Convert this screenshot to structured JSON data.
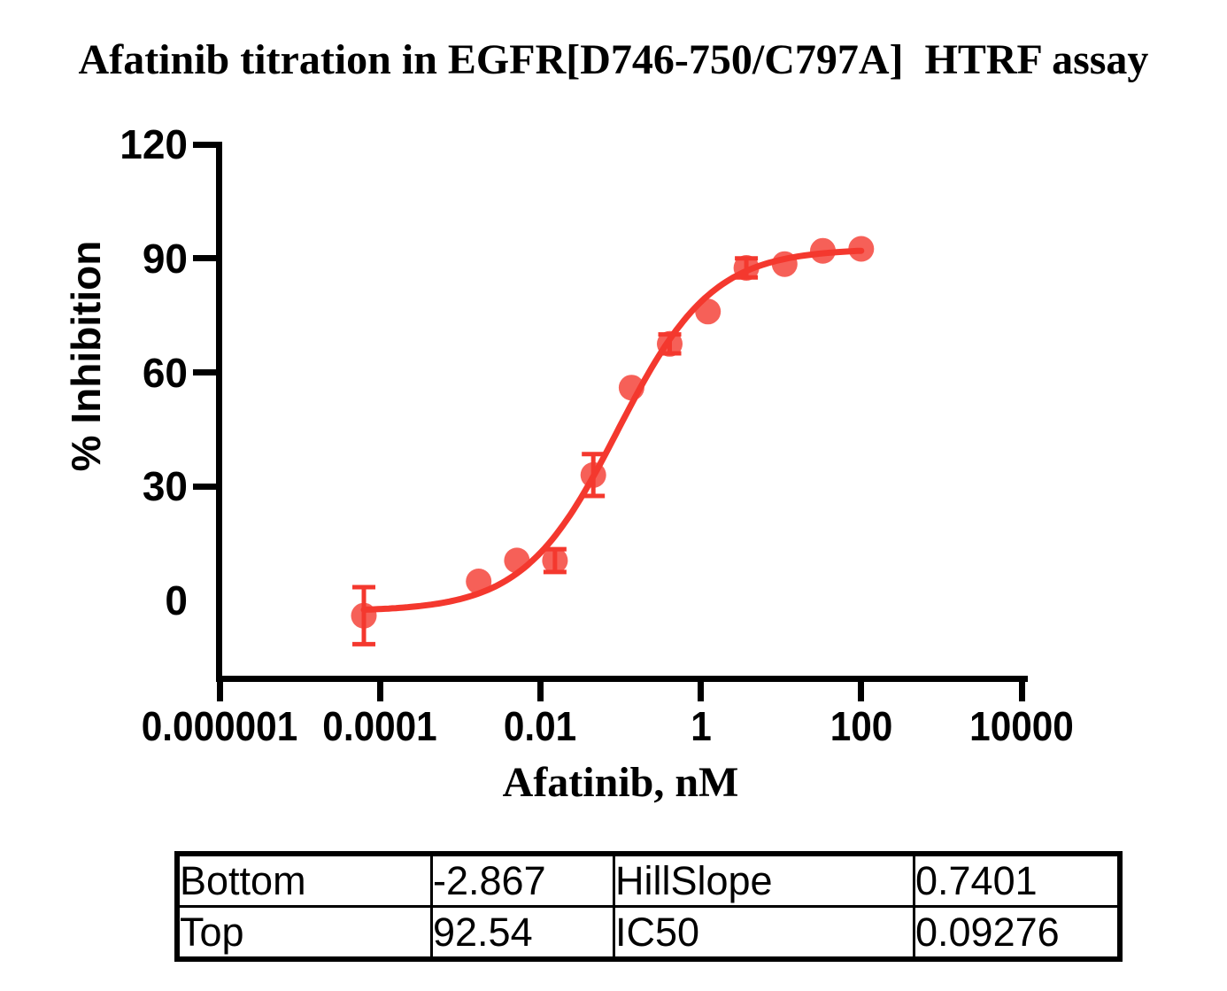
{
  "title": "Afatinib titration in EGFR[D746-750/C797A]  HTRF assay",
  "chart_data": {
    "type": "scatter",
    "title": "Afatinib titration in EGFR[D746-750/C797A]  HTRF assay",
    "xlabel": "Afatinib, nM",
    "ylabel": "% Inhibition",
    "x_scale": "log10",
    "xlim": [
      1e-06,
      10000
    ],
    "ylim": [
      -20,
      120
    ],
    "grid": false,
    "legend": "none",
    "x_ticks": [
      {
        "value": 1e-06,
        "label": "0.000001"
      },
      {
        "value": 0.0001,
        "label": "0.0001"
      },
      {
        "value": 0.01,
        "label": "0.01"
      },
      {
        "value": 1,
        "label": "1"
      },
      {
        "value": 100,
        "label": "100"
      },
      {
        "value": 10000,
        "label": "10000"
      }
    ],
    "y_ticks": [
      {
        "value": 120,
        "label": "120",
        "tick": true
      },
      {
        "value": 90,
        "label": "90",
        "tick": true
      },
      {
        "value": 60,
        "label": "60",
        "tick": true
      },
      {
        "value": 30,
        "label": "30",
        "tick": true
      },
      {
        "value": 0,
        "label": "0",
        "tick": false
      }
    ],
    "series": [
      {
        "name": "Afatinib",
        "color": "#F4382E",
        "marker": "circle",
        "points": [
          {
            "x": 6.3e-05,
            "y": -4,
            "err": 7.5
          },
          {
            "x": 0.0017,
            "y": 5,
            "err": 0
          },
          {
            "x": 0.0051,
            "y": 10.5,
            "err": 0
          },
          {
            "x": 0.0152,
            "y": 10.5,
            "err": 3
          },
          {
            "x": 0.0457,
            "y": 33,
            "err": 5.5
          },
          {
            "x": 0.137,
            "y": 56,
            "err": 0
          },
          {
            "x": 0.41,
            "y": 67.5,
            "err": 2.5
          },
          {
            "x": 1.23,
            "y": 76,
            "err": 0
          },
          {
            "x": 3.7,
            "y": 87.5,
            "err": 2.5
          },
          {
            "x": 11.1,
            "y": 88.5,
            "err": 0
          },
          {
            "x": 33.3,
            "y": 92,
            "err": 0
          },
          {
            "x": 100,
            "y": 92.5,
            "err": 0
          }
        ]
      }
    ],
    "fit": {
      "model": "four_parameter_logistic",
      "bottom": -2.867,
      "top": 92.54,
      "hillslope": 0.7401,
      "ic50": 0.09276,
      "x_from": 6.3e-05,
      "x_to": 100
    }
  },
  "results_table": {
    "rows": [
      [
        "Bottom",
        "-2.867",
        "HillSlope",
        "0.7401"
      ],
      [
        "Top",
        "92.54",
        "IC50",
        "0.09276"
      ]
    ]
  }
}
